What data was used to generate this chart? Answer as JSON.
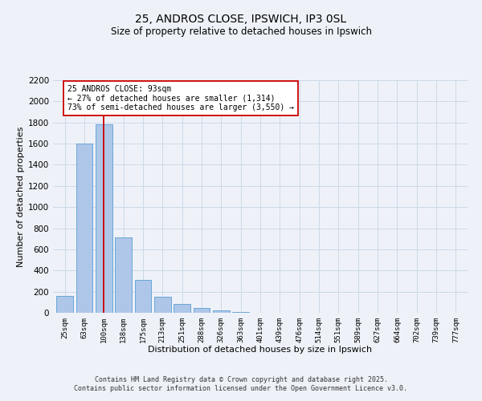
{
  "title": "25, ANDROS CLOSE, IPSWICH, IP3 0SL",
  "subtitle": "Size of property relative to detached houses in Ipswich",
  "xlabel": "Distribution of detached houses by size in Ipswich",
  "ylabel": "Number of detached properties",
  "bar_labels": [
    "25sqm",
    "63sqm",
    "100sqm",
    "138sqm",
    "175sqm",
    "213sqm",
    "251sqm",
    "288sqm",
    "326sqm",
    "363sqm",
    "401sqm",
    "439sqm",
    "476sqm",
    "514sqm",
    "551sqm",
    "589sqm",
    "627sqm",
    "664sqm",
    "702sqm",
    "739sqm",
    "777sqm"
  ],
  "bar_values": [
    160,
    1600,
    1780,
    710,
    310,
    155,
    80,
    45,
    25,
    10,
    0,
    0,
    0,
    0,
    0,
    0,
    0,
    0,
    0,
    0,
    0
  ],
  "bar_color": "#aec6e8",
  "bar_edge_color": "#5a9fd4",
  "vline_x_index": 2,
  "vline_color": "#cc0000",
  "annotation_line1": "25 ANDROS CLOSE: 93sqm",
  "annotation_line2": "← 27% of detached houses are smaller (1,314)",
  "annotation_line3": "73% of semi-detached houses are larger (3,550) →",
  "annotation_box_color": "#ffffff",
  "annotation_box_edge": "#cc0000",
  "ylim": [
    0,
    2200
  ],
  "yticks": [
    0,
    200,
    400,
    600,
    800,
    1000,
    1200,
    1400,
    1600,
    1800,
    2000,
    2200
  ],
  "grid_color": "#ccd9e8",
  "background_color": "#eef2f8",
  "footnote1": "Contains HM Land Registry data © Crown copyright and database right 2025.",
  "footnote2": "Contains public sector information licensed under the Open Government Licence v3.0."
}
